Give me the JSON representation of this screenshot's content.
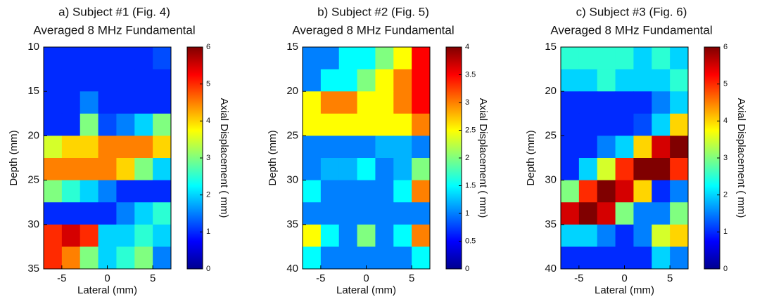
{
  "chart_data": [
    {
      "type": "heatmap",
      "title": "a) Subject #1 (Fig. 4)",
      "subtitle": "Averaged 8 MHz Fundamental",
      "x_label": "Lateral (mm)",
      "y_label": "Depth (mm)",
      "colorbar_label": "Axial Displacement (   mm)",
      "colormap": "jet",
      "xlim": [
        -7,
        7
      ],
      "xticks": [
        -5,
        0,
        5
      ],
      "ylim": [
        10,
        35
      ],
      "yticks": [
        10,
        15,
        20,
        25,
        30,
        35
      ],
      "clim": [
        0,
        6
      ],
      "cticks": [
        0,
        1,
        2,
        3,
        4,
        5,
        6
      ],
      "z": [
        [
          1,
          1,
          1,
          1,
          1,
          1,
          1.2
        ],
        [
          1,
          1,
          1,
          1,
          1,
          1,
          1
        ],
        [
          1,
          1,
          1.5,
          1,
          1,
          1,
          1
        ],
        [
          1,
          1,
          3,
          1.2,
          1.5,
          2,
          3
        ],
        [
          3.5,
          4,
          4,
          4.5,
          4.5,
          4.5,
          4
        ],
        [
          4.5,
          4.5,
          4.5,
          4.5,
          4,
          3,
          2
        ],
        [
          3,
          2.5,
          2,
          1.5,
          1,
          1,
          1
        ],
        [
          1,
          1,
          1,
          1,
          1.5,
          2,
          2.5
        ],
        [
          5,
          5.5,
          5,
          2,
          2,
          2.5,
          2
        ],
        [
          5,
          4.5,
          3,
          2,
          2.5,
          3,
          1.5
        ]
      ]
    },
    {
      "type": "heatmap",
      "title": "b) Subject #2 (Fig. 5)",
      "subtitle": "Averaged 8 MHz Fundamental",
      "x_label": "Lateral (mm)",
      "y_label": "Depth (mm)",
      "colorbar_label": "Axial Displacement (   mm)",
      "colormap": "jet",
      "xlim": [
        -7,
        7
      ],
      "xticks": [
        -5,
        0,
        5
      ],
      "ylim": [
        15,
        40
      ],
      "yticks": [
        15,
        20,
        25,
        30,
        35,
        40
      ],
      "clim": [
        0,
        4
      ],
      "cticks": [
        0,
        0.5,
        1,
        1.5,
        2,
        2.5,
        3,
        3.5,
        4
      ],
      "z": [
        [
          1,
          1,
          1.5,
          1.5,
          2,
          2.5,
          3.5
        ],
        [
          1,
          1.5,
          1.5,
          2,
          2.5,
          3,
          3.5
        ],
        [
          2.5,
          3,
          3,
          2.5,
          2.5,
          3,
          3.5
        ],
        [
          2.5,
          2.5,
          2.5,
          2.5,
          2.5,
          2.5,
          3
        ],
        [
          1,
          1,
          1,
          1,
          1.2,
          1.2,
          1
        ],
        [
          1,
          1.2,
          1.2,
          1.5,
          1,
          1.2,
          2
        ],
        [
          1.5,
          1,
          1,
          1,
          1,
          1.5,
          3
        ],
        [
          1,
          1,
          1,
          1,
          1,
          1,
          1
        ],
        [
          2.5,
          1.5,
          1,
          2,
          1,
          1.5,
          3
        ],
        [
          1.5,
          1,
          1,
          1,
          1,
          1,
          1.5
        ]
      ]
    },
    {
      "type": "heatmap",
      "title": "c) Subject #3 (Fig. 6)",
      "subtitle": "Averaged 8 MHz Fundamental",
      "x_label": "Lateral (mm)",
      "y_label": "Depth (mm)",
      "colorbar_label": "Axial Displacement (   mm)",
      "colormap": "jet",
      "xlim": [
        -7,
        7
      ],
      "xticks": [
        -5,
        0,
        5
      ],
      "ylim": [
        15,
        40
      ],
      "yticks": [
        15,
        20,
        25,
        30,
        35,
        40
      ],
      "clim": [
        0,
        6
      ],
      "cticks": [
        0,
        1,
        2,
        3,
        4,
        5,
        6
      ],
      "z": [
        [
          2.5,
          2.5,
          2.5,
          2.5,
          2,
          2.5,
          2
        ],
        [
          2,
          2,
          2.5,
          2,
          2,
          2,
          2.5
        ],
        [
          1,
          1,
          1,
          1,
          1,
          1.5,
          2
        ],
        [
          1,
          1,
          1,
          1,
          1.2,
          2,
          4
        ],
        [
          1,
          1,
          1.5,
          2,
          4,
          5.5,
          6
        ],
        [
          1,
          2,
          3.5,
          5,
          6,
          6,
          5
        ],
        [
          3,
          5,
          6,
          5.5,
          4,
          1,
          1.5
        ],
        [
          5.5,
          6,
          5.5,
          3,
          1.5,
          1.5,
          3
        ],
        [
          2,
          2,
          1.5,
          1,
          1.5,
          3.5,
          4
        ],
        [
          1,
          1,
          1,
          1,
          1,
          2,
          1.5
        ]
      ]
    }
  ]
}
